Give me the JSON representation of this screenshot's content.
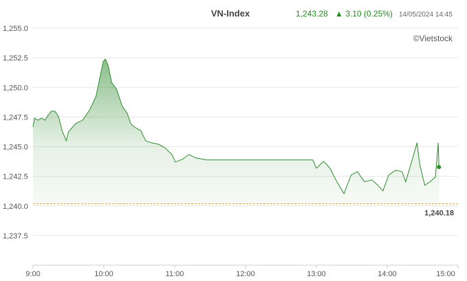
{
  "chart_data": {
    "type": "area",
    "title": "VN-Index",
    "last_value": "1,243.28",
    "change": "▲ 3.10 (0.25%)",
    "timestamp": "14/05/2024 14:45",
    "source": "©Vietstock",
    "color": "#2e8b2e",
    "reference": {
      "value": 1240.18,
      "label": "1,240.18",
      "color": "#f0a020"
    },
    "x": [
      9.0,
      9.02,
      9.07,
      9.12,
      9.17,
      9.21,
      9.26,
      9.31,
      9.36,
      9.41,
      9.47,
      9.5,
      9.6,
      9.7,
      9.8,
      9.89,
      9.94,
      9.99,
      10.02,
      10.06,
      10.11,
      10.18,
      10.26,
      10.33,
      10.38,
      10.43,
      10.48,
      10.52,
      10.59,
      10.67,
      10.77,
      10.86,
      10.96,
      11.01,
      11.11,
      11.2,
      11.3,
      11.45,
      12.95,
      13.0,
      13.1,
      13.15,
      13.19,
      13.29,
      13.39,
      13.49,
      13.58,
      13.68,
      13.78,
      13.87,
      13.94,
      14.02,
      14.12,
      14.21,
      14.26,
      14.36,
      14.42,
      14.46,
      14.53,
      14.6,
      14.68,
      14.72,
      14.73
    ],
    "values": [
      1246.66,
      1247.41,
      1247.24,
      1247.41,
      1247.24,
      1247.64,
      1247.99,
      1247.99,
      1247.53,
      1246.37,
      1245.5,
      1246.25,
      1246.95,
      1247.24,
      1248.11,
      1249.27,
      1250.71,
      1252.16,
      1252.39,
      1251.87,
      1250.42,
      1249.85,
      1248.4,
      1247.82,
      1246.95,
      1246.66,
      1246.49,
      1246.37,
      1245.5,
      1245.33,
      1245.21,
      1244.92,
      1244.34,
      1243.71,
      1243.94,
      1244.34,
      1244.05,
      1243.88,
      1243.88,
      1243.18,
      1243.76,
      1243.47,
      1243.18,
      1242.03,
      1241.04,
      1242.61,
      1242.89,
      1242.03,
      1242.2,
      1241.74,
      1241.27,
      1242.61,
      1243.01,
      1242.89,
      1242.03,
      1244.05,
      1245.33,
      1243.47,
      1241.74,
      1242.03,
      1242.43,
      1245.33,
      1243.28
    ],
    "xlim": [
      9,
      15
    ],
    "xticks": [
      {
        "value": 9,
        "label": "9:00"
      },
      {
        "value": 10,
        "label": "10:00"
      },
      {
        "value": 11,
        "label": "11:00"
      },
      {
        "value": 12,
        "label": "12:00"
      },
      {
        "value": 13,
        "label": "13:00"
      },
      {
        "value": 14,
        "label": "14:00"
      },
      {
        "value": 15,
        "label": "15:00"
      }
    ],
    "ylim": [
      1235,
      1255
    ],
    "yticks": [
      {
        "value": 1237.5,
        "label": "1,237.5"
      },
      {
        "value": 1240,
        "label": "1,240.0"
      },
      {
        "value": 1242.5,
        "label": "1,242.5"
      },
      {
        "value": 1245,
        "label": "1,245.0"
      },
      {
        "value": 1247.5,
        "label": "1,247.5"
      },
      {
        "value": 1250,
        "label": "1,250.0"
      },
      {
        "value": 1252.5,
        "label": "1,252.5"
      },
      {
        "value": 1255,
        "label": "1,255.0"
      }
    ],
    "grid": true
  }
}
